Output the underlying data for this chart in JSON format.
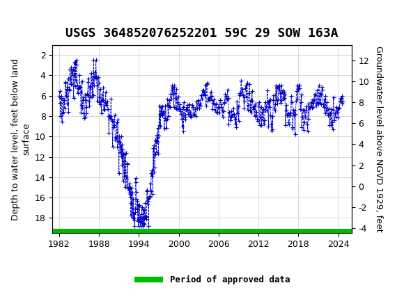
{
  "title": "USGS 364852076252201 59C 29 SOW 163A",
  "ylabel_left": "Depth to water level, feet below land\nsurface",
  "ylabel_right": "Groundwater level above NGVD 1929, feet",
  "ylim_left": [
    19.5,
    1.0
  ],
  "ylim_right": [
    -4.5,
    13.5
  ],
  "xlim": [
    1981.0,
    2026.0
  ],
  "xticks": [
    1982,
    1988,
    1994,
    2000,
    2006,
    2012,
    2018,
    2024
  ],
  "yticks_left": [
    2,
    4,
    6,
    8,
    10,
    12,
    14,
    16,
    18
  ],
  "yticks_right": [
    -4,
    -2,
    0,
    2,
    4,
    6,
    8,
    10,
    12
  ],
  "line_color": "#0000CC",
  "line_style": "--",
  "marker": "+",
  "marker_size": 4,
  "green_bar_color": "#00BB00",
  "header_color": "#1a6b3b",
  "legend_label": "Period of approved data",
  "background_color": "#ffffff",
  "grid_color": "#cccccc",
  "title_fontsize": 13,
  "axis_label_fontsize": 9,
  "tick_fontsize": 9
}
